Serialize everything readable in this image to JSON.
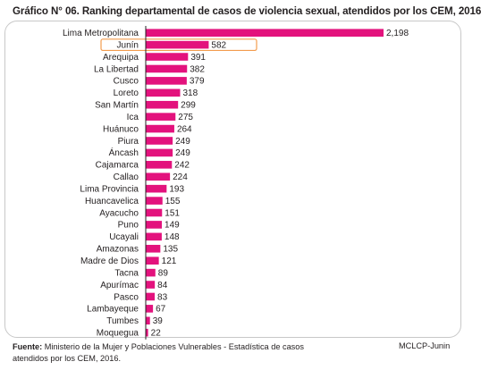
{
  "chart_data": {
    "type": "bar",
    "orientation": "horizontal",
    "title": "Gráfico N° 06. Ranking departamental de casos de violencia sexual, atendidos por los CEM, 2016",
    "categories": [
      "Lima Metropolitana",
      "Junín",
      "Arequipa",
      "La Libertad",
      "Cusco",
      "Loreto",
      "San Martín",
      "Ica",
      "Huánuco",
      "Piura",
      "Áncash",
      "Cajamarca",
      "Callao",
      "Lima Provincia",
      "Huancavelica",
      "Ayacucho",
      "Puno",
      "Ucayali",
      "Amazonas",
      "Madre de Dios",
      "Tacna",
      "Apurímac",
      "Pasco",
      "Lambayeque",
      "Tumbes",
      "Moquegua"
    ],
    "values": [
      2198,
      582,
      391,
      382,
      379,
      318,
      299,
      275,
      264,
      249,
      249,
      242,
      224,
      193,
      155,
      151,
      149,
      148,
      135,
      121,
      89,
      84,
      83,
      67,
      39,
      22
    ],
    "value_labels": [
      "2,198",
      "582",
      "391",
      "382",
      "379",
      "318",
      "299",
      "275",
      "264",
      "249",
      "249",
      "242",
      "224",
      "193",
      "155",
      "151",
      "149",
      "148",
      "135",
      "121",
      "89",
      "84",
      "83",
      "67",
      "39",
      "22"
    ],
    "highlighted_category": "Junín",
    "xlim": [
      0,
      2198
    ],
    "grid": false,
    "colors": {
      "bar": "#e3127d",
      "highlight_border": "#f39c4e",
      "axis": "#231f20"
    }
  },
  "footer": {
    "source_label": "Fuente:",
    "source_text": "Ministerio de la Mujer y Poblaciones Vulnerables - Estadística de casos atendidos por los CEM, 2016.",
    "credit": "MCLCP-Junin"
  }
}
